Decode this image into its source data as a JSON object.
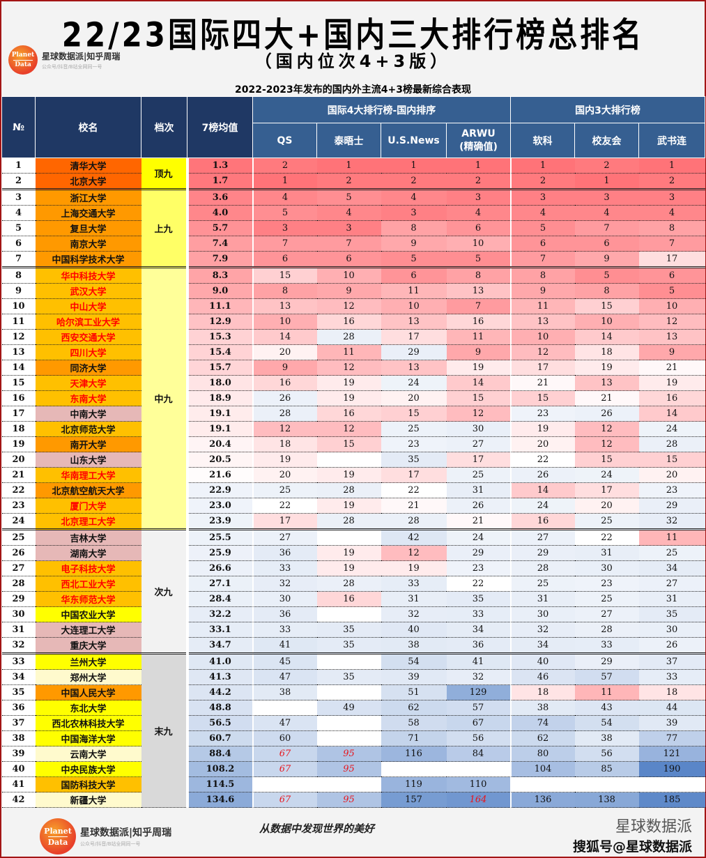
{
  "header": {
    "title": "22/23国际四大+国内三大排行榜总排名",
    "subtitle": "（国内位次4+3版）",
    "caption": "2022-2023年发布的国内外主流4+3榜最新综合表现",
    "logo": {
      "circle_top": "Planet",
      "circle_bottom": "Data",
      "name": "星球数据派|知乎周瑞",
      "tagline": "公众号/抖音/B站全网同一号"
    }
  },
  "table": {
    "col_headers": {
      "no": "№",
      "name": "校名",
      "tier": "档次",
      "avg": "7榜均值"
    },
    "group_headers": {
      "intl": "国际4大排行榜-国内排序",
      "domestic": "国内3大排行榜"
    },
    "sub_headers": [
      "QS",
      "泰晤士",
      "U.S.News",
      "ARWU\n(精确值)",
      "软科",
      "校友会",
      "武书连"
    ],
    "tiers": [
      {
        "label": "顶九",
        "start": 1,
        "span": 2,
        "bg": "#ffff00"
      },
      {
        "label": "上九",
        "start": 3,
        "span": 5,
        "bg": "#ffff66"
      },
      {
        "label": "中九",
        "start": 8,
        "span": 17,
        "bg": "#ffff99"
      },
      {
        "label": "次九",
        "start": 25,
        "span": 8,
        "bg": "#f2f2f2"
      },
      {
        "label": "末九",
        "start": 33,
        "span": 10,
        "bg": "#d9d9d9"
      }
    ]
  },
  "chart_data": {
    "type": "table",
    "title": "22/23国际四大+国内三大排行榜总排名（国内位次4+3版）",
    "columns": [
      "No",
      "校名",
      "档次",
      "7榜均值",
      "QS",
      "泰晤士",
      "U.S.News",
      "ARWU",
      "软科",
      "校友会",
      "武书连"
    ],
    "rows": [
      [
        1,
        "清华大学",
        "顶九",
        1.3,
        2,
        1,
        1,
        1,
        1,
        2,
        1
      ],
      [
        2,
        "北京大学",
        "顶九",
        1.7,
        1,
        2,
        2,
        2,
        2,
        1,
        2
      ],
      [
        3,
        "浙江大学",
        "上九",
        3.6,
        4,
        5,
        4,
        3,
        3,
        3,
        3
      ],
      [
        4,
        "上海交通大学",
        "上九",
        4.0,
        5,
        4,
        3,
        4,
        4,
        4,
        4
      ],
      [
        5,
        "复旦大学",
        "上九",
        5.7,
        3,
        3,
        8,
        6,
        5,
        7,
        8
      ],
      [
        6,
        "南京大学",
        "上九",
        7.4,
        7,
        7,
        9,
        10,
        6,
        6,
        7
      ],
      [
        7,
        "中国科学技术大学",
        "上九",
        7.9,
        6,
        6,
        5,
        5,
        7,
        9,
        17
      ],
      [
        8,
        "华中科技大学",
        "中九",
        8.3,
        15,
        10,
        6,
        8,
        8,
        5,
        6
      ],
      [
        9,
        "武汉大学",
        "中九",
        9.0,
        8,
        9,
        11,
        13,
        9,
        8,
        5
      ],
      [
        10,
        "中山大学",
        "中九",
        11.1,
        13,
        12,
        10,
        7,
        11,
        15,
        10
      ],
      [
        11,
        "哈尔滨工业大学",
        "中九",
        12.9,
        10,
        16,
        13,
        16,
        13,
        10,
        12
      ],
      [
        12,
        "西安交通大学",
        "中九",
        15.3,
        14,
        28,
        17,
        11,
        10,
        14,
        13
      ],
      [
        13,
        "四川大学",
        "中九",
        15.4,
        20,
        11,
        29,
        9,
        12,
        18,
        9
      ],
      [
        14,
        "同济大学",
        "中九",
        15.7,
        9,
        12,
        13,
        19,
        17,
        19,
        21
      ],
      [
        15,
        "天津大学",
        "中九",
        18.0,
        16,
        19,
        24,
        14,
        21,
        13,
        19
      ],
      [
        16,
        "东南大学",
        "中九",
        18.9,
        26,
        19,
        20,
        15,
        15,
        21,
        16
      ],
      [
        17,
        "中南大学",
        "中九",
        19.1,
        28,
        16,
        15,
        12,
        23,
        26,
        14
      ],
      [
        18,
        "北京师范大学",
        "中九",
        19.1,
        12,
        12,
        25,
        30,
        19,
        12,
        24
      ],
      [
        19,
        "南开大学",
        "中九",
        20.4,
        18,
        15,
        23,
        27,
        20,
        12,
        28
      ],
      [
        20,
        "山东大学",
        "中九",
        20.5,
        19,
        null,
        35,
        17,
        22,
        15,
        15
      ],
      [
        21,
        "华南理工大学",
        "中九",
        21.6,
        20,
        19,
        17,
        25,
        26,
        24,
        20
      ],
      [
        22,
        "北京航空航天大学",
        "中九",
        22.9,
        25,
        28,
        22,
        31,
        14,
        17,
        23
      ],
      [
        23,
        "厦门大学",
        "中九",
        23.0,
        22,
        19,
        21,
        26,
        24,
        20,
        29
      ],
      [
        24,
        "北京理工大学",
        "中九",
        23.9,
        17,
        28,
        28,
        21,
        16,
        25,
        32
      ],
      [
        25,
        "吉林大学",
        "次九",
        25.5,
        27,
        null,
        42,
        24,
        27,
        22,
        11
      ],
      [
        26,
        "湖南大学",
        "次九",
        25.9,
        36,
        19,
        12,
        29,
        29,
        31,
        25
      ],
      [
        27,
        "电子科技大学",
        "次九",
        26.6,
        33,
        19,
        19,
        23,
        28,
        30,
        34
      ],
      [
        28,
        "西北工业大学",
        "次九",
        27.1,
        32,
        28,
        33,
        22,
        25,
        23,
        27
      ],
      [
        29,
        "华东师范大学",
        "次九",
        28.4,
        30,
        16,
        31,
        35,
        31,
        25,
        31
      ],
      [
        30,
        "中国农业大学",
        "次九",
        32.2,
        36,
        null,
        32,
        33,
        30,
        27,
        35
      ],
      [
        31,
        "大连理工大学",
        "次九",
        33.1,
        33,
        35,
        40,
        34,
        32,
        28,
        30
      ],
      [
        32,
        "重庆大学",
        "次九",
        34.7,
        41,
        35,
        38,
        36,
        34,
        33,
        26
      ],
      [
        33,
        "兰州大学",
        "末九",
        41.0,
        45,
        null,
        54,
        41,
        40,
        29,
        37
      ],
      [
        34,
        "郑州大学",
        "末九",
        41.3,
        47,
        35,
        39,
        32,
        46,
        57,
        33
      ],
      [
        35,
        "中国人民大学",
        "末九",
        44.2,
        38,
        null,
        51,
        129,
        18,
        11,
        18
      ],
      [
        36,
        "东北大学",
        "末九",
        48.8,
        null,
        49,
        62,
        57,
        38,
        43,
        44
      ],
      [
        37,
        "西北农林科技大学",
        "末九",
        56.5,
        47,
        null,
        58,
        67,
        74,
        54,
        39
      ],
      [
        38,
        "中国海洋大学",
        "末九",
        60.7,
        60,
        null,
        71,
        56,
        62,
        38,
        77
      ],
      [
        39,
        "云南大学",
        "末九",
        88.4,
        67,
        95,
        116,
        84,
        80,
        56,
        121
      ],
      [
        40,
        "中央民族大学",
        "末九",
        108.2,
        67,
        95,
        null,
        null,
        104,
        85,
        190
      ],
      [
        41,
        "国防科技大学",
        "末九",
        114.5,
        null,
        null,
        119,
        110,
        null,
        null,
        null
      ],
      [
        42,
        "新疆大学",
        "末九",
        134.6,
        67,
        95,
        157,
        164,
        136,
        138,
        185
      ]
    ],
    "estimated_values_red_italic": "67/95 for QS/泰晤士 and 164 for ARWU (row 42) shown in red italic"
  },
  "rows": [
    {
      "no": "1",
      "name": "清华大学",
      "name_bg": "#ff6600",
      "name_color": "#111",
      "avg": "1.3",
      "vals": [
        "2",
        "1",
        "1",
        "1",
        "1",
        "2",
        "1"
      ]
    },
    {
      "no": "2",
      "name": "北京大学",
      "name_bg": "#ff6600",
      "name_color": "#111",
      "avg": "1.7",
      "vals": [
        "1",
        "2",
        "2",
        "2",
        "2",
        "1",
        "2"
      ]
    },
    {
      "no": "3",
      "name": "浙江大学",
      "name_bg": "#ff9900",
      "name_color": "#111",
      "avg": "3.6",
      "vals": [
        "4",
        "5",
        "4",
        "3",
        "3",
        "3",
        "3"
      ]
    },
    {
      "no": "4",
      "name": "上海交通大学",
      "name_bg": "#ff9900",
      "name_color": "#111",
      "avg": "4.0",
      "vals": [
        "5",
        "4",
        "3",
        "4",
        "4",
        "4",
        "4"
      ]
    },
    {
      "no": "5",
      "name": "复旦大学",
      "name_bg": "#ff9900",
      "name_color": "#111",
      "avg": "5.7",
      "vals": [
        "3",
        "3",
        "8",
        "6",
        "5",
        "7",
        "8"
      ]
    },
    {
      "no": "6",
      "name": "南京大学",
      "name_bg": "#ff9900",
      "name_color": "#111",
      "avg": "7.4",
      "vals": [
        "7",
        "7",
        "9",
        "10",
        "6",
        "6",
        "7"
      ]
    },
    {
      "no": "7",
      "name": "中国科学技术大学",
      "name_bg": "#ff9900",
      "name_color": "#111",
      "avg": "7.9",
      "vals": [
        "6",
        "6",
        "5",
        "5",
        "7",
        "9",
        "17"
      ]
    },
    {
      "no": "8",
      "name": "华中科技大学",
      "name_bg": "#ffc000",
      "name_color": "#ff0000",
      "avg": "8.3",
      "vals": [
        "15",
        "10",
        "6",
        "8",
        "8",
        "5",
        "6"
      ]
    },
    {
      "no": "9",
      "name": "武汉大学",
      "name_bg": "#ffc000",
      "name_color": "#ff0000",
      "avg": "9.0",
      "vals": [
        "8",
        "9",
        "11",
        "13",
        "9",
        "8",
        "5"
      ]
    },
    {
      "no": "10",
      "name": "中山大学",
      "name_bg": "#ffc000",
      "name_color": "#ff0000",
      "avg": "11.1",
      "vals": [
        "13",
        "12",
        "10",
        "7",
        "11",
        "15",
        "10"
      ]
    },
    {
      "no": "11",
      "name": "哈尔滨工业大学",
      "name_bg": "#ffc000",
      "name_color": "#ff0000",
      "avg": "12.9",
      "vals": [
        "10",
        "16",
        "13",
        "16",
        "13",
        "10",
        "12"
      ]
    },
    {
      "no": "12",
      "name": "西安交通大学",
      "name_bg": "#ffc000",
      "name_color": "#ff0000",
      "avg": "15.3",
      "vals": [
        "14",
        "28",
        "17",
        "11",
        "10",
        "14",
        "13"
      ]
    },
    {
      "no": "13",
      "name": "四川大学",
      "name_bg": "#ffc000",
      "name_color": "#ff0000",
      "avg": "15.4",
      "vals": [
        "20",
        "11",
        "29",
        "9",
        "12",
        "18",
        "9"
      ]
    },
    {
      "no": "14",
      "name": "同济大学",
      "name_bg": "#ff9900",
      "name_color": "#111",
      "avg": "15.7",
      "vals": [
        "9",
        "12",
        "13",
        "19",
        "17",
        "19",
        "21"
      ]
    },
    {
      "no": "15",
      "name": "天津大学",
      "name_bg": "#ffc000",
      "name_color": "#ff0000",
      "avg": "18.0",
      "vals": [
        "16",
        "19",
        "24",
        "14",
        "21",
        "13",
        "19"
      ]
    },
    {
      "no": "16",
      "name": "东南大学",
      "name_bg": "#ffc000",
      "name_color": "#ff0000",
      "avg": "18.9",
      "vals": [
        "26",
        "19",
        "20",
        "15",
        "15",
        "21",
        "16"
      ]
    },
    {
      "no": "17",
      "name": "中南大学",
      "name_bg": "#e6b8b7",
      "name_color": "#111",
      "avg": "19.1",
      "vals": [
        "28",
        "16",
        "15",
        "12",
        "23",
        "26",
        "14"
      ]
    },
    {
      "no": "18",
      "name": "北京师范大学",
      "name_bg": "#ffc000",
      "name_color": "#111",
      "avg": "19.1",
      "vals": [
        "12",
        "12",
        "25",
        "30",
        "19",
        "12",
        "24"
      ]
    },
    {
      "no": "19",
      "name": "南开大学",
      "name_bg": "#ff9900",
      "name_color": "#111",
      "avg": "20.4",
      "vals": [
        "18",
        "15",
        "23",
        "27",
        "20",
        "12",
        "28"
      ]
    },
    {
      "no": "20",
      "name": "山东大学",
      "name_bg": "#e6b8b7",
      "name_color": "#111",
      "avg": "20.5",
      "vals": [
        "19",
        "",
        "35",
        "17",
        "22",
        "15",
        "15"
      ]
    },
    {
      "no": "21",
      "name": "华南理工大学",
      "name_bg": "#ffc000",
      "name_color": "#ff0000",
      "avg": "21.6",
      "vals": [
        "20",
        "19",
        "17",
        "25",
        "26",
        "24",
        "20"
      ]
    },
    {
      "no": "22",
      "name": "北京航空航天大学",
      "name_bg": "#ff9900",
      "name_color": "#111",
      "avg": "22.9",
      "vals": [
        "25",
        "28",
        "22",
        "31",
        "14",
        "17",
        "23"
      ]
    },
    {
      "no": "23",
      "name": "厦门大学",
      "name_bg": "#ffc000",
      "name_color": "#ff0000",
      "avg": "23.0",
      "vals": [
        "22",
        "19",
        "21",
        "26",
        "24",
        "20",
        "29"
      ]
    },
    {
      "no": "24",
      "name": "北京理工大学",
      "name_bg": "#ffc000",
      "name_color": "#ff0000",
      "avg": "23.9",
      "vals": [
        "17",
        "28",
        "28",
        "21",
        "16",
        "25",
        "32"
      ]
    },
    {
      "no": "25",
      "name": "吉林大学",
      "name_bg": "#e6b8b7",
      "name_color": "#111",
      "avg": "25.5",
      "vals": [
        "27",
        "",
        "42",
        "24",
        "27",
        "22",
        "11"
      ]
    },
    {
      "no": "26",
      "name": "湖南大学",
      "name_bg": "#e6b8b7",
      "name_color": "#111",
      "avg": "25.9",
      "vals": [
        "36",
        "19",
        "12",
        "29",
        "29",
        "31",
        "25"
      ]
    },
    {
      "no": "27",
      "name": "电子科技大学",
      "name_bg": "#ffc000",
      "name_color": "#ff0000",
      "avg": "26.6",
      "vals": [
        "33",
        "19",
        "19",
        "23",
        "28",
        "30",
        "34"
      ]
    },
    {
      "no": "28",
      "name": "西北工业大学",
      "name_bg": "#ffc000",
      "name_color": "#ff0000",
      "avg": "27.1",
      "vals": [
        "32",
        "28",
        "33",
        "22",
        "25",
        "23",
        "27"
      ]
    },
    {
      "no": "29",
      "name": "华东师范大学",
      "name_bg": "#ffc000",
      "name_color": "#ff0000",
      "avg": "28.4",
      "vals": [
        "30",
        "16",
        "31",
        "35",
        "31",
        "25",
        "31"
      ]
    },
    {
      "no": "30",
      "name": "中国农业大学",
      "name_bg": "#ffff00",
      "name_color": "#111",
      "avg": "32.2",
      "vals": [
        "36",
        "",
        "32",
        "33",
        "30",
        "27",
        "35"
      ]
    },
    {
      "no": "31",
      "name": "大连理工大学",
      "name_bg": "#e6b8b7",
      "name_color": "#111",
      "avg": "33.1",
      "vals": [
        "33",
        "35",
        "40",
        "34",
        "32",
        "28",
        "30"
      ]
    },
    {
      "no": "32",
      "name": "重庆大学",
      "name_bg": "#e6b8b7",
      "name_color": "#111",
      "avg": "34.7",
      "vals": [
        "41",
        "35",
        "38",
        "36",
        "34",
        "33",
        "26"
      ]
    },
    {
      "no": "33",
      "name": "兰州大学",
      "name_bg": "#ffff00",
      "name_color": "#111",
      "avg": "41.0",
      "vals": [
        "45",
        "",
        "54",
        "41",
        "40",
        "29",
        "37"
      ]
    },
    {
      "no": "34",
      "name": "郑州大学",
      "name_bg": "#fffacd",
      "name_color": "#111",
      "avg": "41.3",
      "vals": [
        "47",
        "35",
        "39",
        "32",
        "46",
        "57",
        "33"
      ]
    },
    {
      "no": "35",
      "name": "中国人民大学",
      "name_bg": "#ff9900",
      "name_color": "#111",
      "avg": "44.2",
      "vals": [
        "38",
        "",
        "51",
        "129",
        "18",
        "11",
        "18"
      ]
    },
    {
      "no": "36",
      "name": "东北大学",
      "name_bg": "#ffff00",
      "name_color": "#111",
      "avg": "48.8",
      "vals": [
        "",
        "49",
        "62",
        "57",
        "38",
        "43",
        "44"
      ]
    },
    {
      "no": "37",
      "name": "西北农林科技大学",
      "name_bg": "#ffff00",
      "name_color": "#111",
      "avg": "56.5",
      "vals": [
        "47",
        "",
        "58",
        "67",
        "74",
        "54",
        "39"
      ]
    },
    {
      "no": "38",
      "name": "中国海洋大学",
      "name_bg": "#ffff00",
      "name_color": "#111",
      "avg": "60.7",
      "vals": [
        "60",
        "",
        "71",
        "56",
        "62",
        "38",
        "77"
      ]
    },
    {
      "no": "39",
      "name": "云南大学",
      "name_bg": "#fffacd",
      "name_color": "#111",
      "avg": "88.4",
      "vals": [
        "67*",
        "95*",
        "116",
        "84",
        "80",
        "56",
        "121"
      ]
    },
    {
      "no": "40",
      "name": "中央民族大学",
      "name_bg": "#ffff00",
      "name_color": "#111",
      "avg": "108.2",
      "vals": [
        "67*",
        "95*",
        "",
        "",
        "104",
        "85",
        "190"
      ]
    },
    {
      "no": "41",
      "name": "国防科技大学",
      "name_bg": "#ffc000",
      "name_color": "#111",
      "avg": "114.5",
      "vals": [
        "",
        "",
        "119",
        "110",
        "",
        "",
        ""
      ]
    },
    {
      "no": "42",
      "name": "新疆大学",
      "name_bg": "#fffacd",
      "name_color": "#111",
      "avg": "134.6",
      "vals": [
        "67*",
        "95*",
        "157",
        "164*",
        "136",
        "138",
        "185"
      ]
    }
  ],
  "footer": {
    "logo": {
      "circle_top": "Planet",
      "circle_bottom": "Data",
      "name": "星球数据派|知乎周瑞",
      "tagline": "公众号/抖音/B站全网同一号"
    },
    "slogan": "从数据中发现世界的美好",
    "brand_line1": "星球数据派",
    "brand_line2": "搜狐号@星球数据派"
  }
}
